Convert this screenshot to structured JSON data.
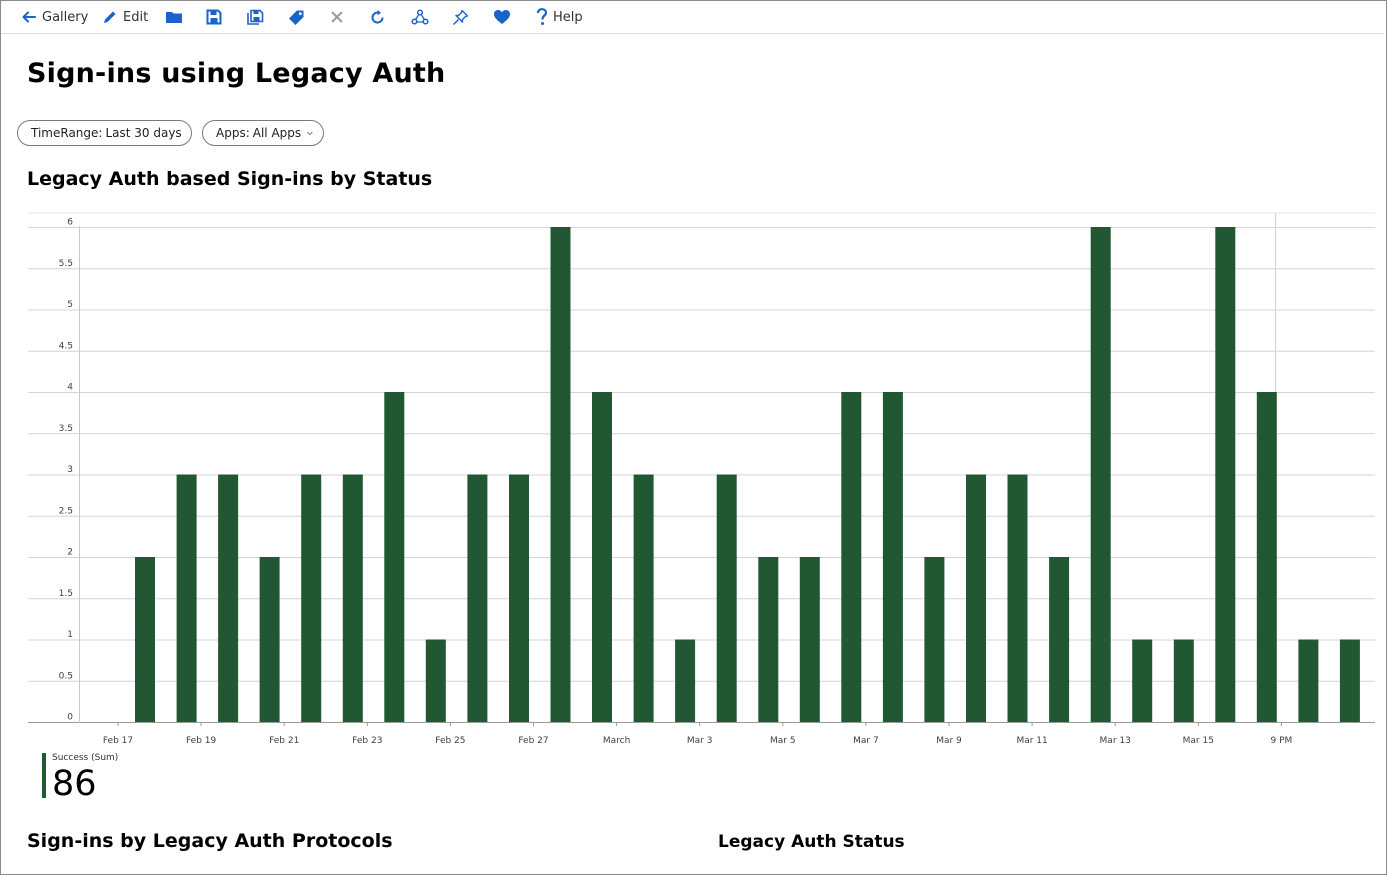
{
  "toolbar": {
    "gallery_label": "Gallery",
    "edit_label": "Edit",
    "help_label": "Help",
    "icons": [
      "back-arrow-icon",
      "pencil-icon",
      "folder-icon",
      "save-icon",
      "save-as-icon",
      "tag-icon",
      "close-icon",
      "refresh-icon",
      "share-icon",
      "pin-icon",
      "heart-icon",
      "help-icon"
    ]
  },
  "page": {
    "title": "Sign-ins using Legacy Auth"
  },
  "filters": {
    "time_range": {
      "name": "TimeRange:",
      "value": "Last 30 days"
    },
    "apps": {
      "name": "Apps:",
      "value": "All Apps"
    }
  },
  "chart_section": {
    "title": "Legacy Auth based Sign-ins by Status"
  },
  "colors": {
    "bar": "#215732",
    "legend_accent": "#1f5b30",
    "toolbar_icon": "#1a63c9",
    "gridline": "#d0d0d0",
    "axis_text": "#404040"
  },
  "chart_data": {
    "type": "bar",
    "title": "Legacy Auth based Sign-ins by Status",
    "xlabel": "",
    "ylabel": "",
    "ylim": [
      0,
      6
    ],
    "y_ticks": [
      "0",
      "0.5",
      "1",
      "1.5",
      "2",
      "2.5",
      "3",
      "3.5",
      "4",
      "4.5",
      "5",
      "5.5",
      "6"
    ],
    "x_tick_labels": [
      "Feb 17",
      "Feb 19",
      "Feb 21",
      "Feb 23",
      "Feb 25",
      "Feb 27",
      "March",
      "Mar 3",
      "Mar 5",
      "Mar 7",
      "Mar 9",
      "Mar 11",
      "Mar 13",
      "Mar 15",
      "9 PM"
    ],
    "grid": true,
    "categories": [
      "Feb 17",
      "Feb 18",
      "Feb 19",
      "Feb 20",
      "Feb 21",
      "Feb 22",
      "Feb 23",
      "Feb 24",
      "Feb 25",
      "Feb 26",
      "Feb 27",
      "Feb 28",
      "Mar 1",
      "Mar 2",
      "Mar 3",
      "Mar 4",
      "Mar 5",
      "Mar 6",
      "Mar 7",
      "Mar 8",
      "Mar 9",
      "Mar 10",
      "Mar 11",
      "Mar 12",
      "Mar 13",
      "Mar 14",
      "Mar 15",
      "Mar 16",
      "Mar 17",
      "Mar 18"
    ],
    "series": [
      {
        "name": "Success",
        "values": [
          2,
          3,
          3,
          2,
          3,
          3,
          4,
          1,
          3,
          3,
          6,
          4,
          3,
          1,
          3,
          2,
          2,
          4,
          4,
          2,
          3,
          3,
          2,
          6,
          1,
          1,
          6,
          4,
          1,
          1
        ]
      }
    ]
  },
  "legend": {
    "label": "Success (Sum)",
    "value": "86"
  },
  "sections": {
    "left_title": "Sign-ins by Legacy Auth Protocols",
    "right_title": "Legacy Auth Status"
  }
}
